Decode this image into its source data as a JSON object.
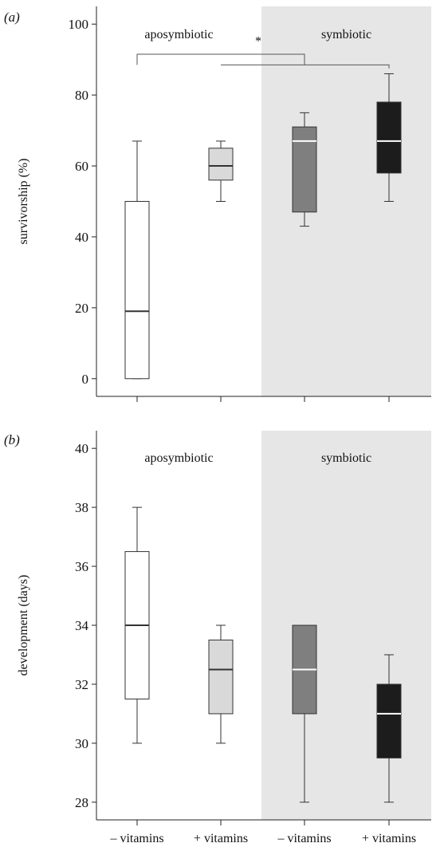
{
  "panels": [
    {
      "label": "(a)",
      "ylabel": "survivorship (%)",
      "group_labels": [
        "aposymbiotic",
        "symbiotic"
      ]
    },
    {
      "label": "(b)",
      "ylabel": "development (days)",
      "group_labels": [
        "aposymbiotic",
        "symbiotic"
      ]
    }
  ],
  "significance_marker": "*",
  "x_tick_labels": [
    "– vitamins",
    "+ vitamins",
    "– vitamins",
    "+ vitamins"
  ],
  "colors": {
    "symbiotic_background": "#e6e6e6",
    "box_fills": [
      "#ffffff",
      "#d9d9d9",
      "#7f7f7f",
      "#1c1c1c"
    ],
    "median_colors": [
      "#333333",
      "#333333",
      "#ffffff",
      "#ffffff"
    ]
  },
  "chart_data": [
    {
      "type": "box",
      "ylabel": "survivorship (%)",
      "ylim": [
        -5,
        105
      ],
      "yticks": [
        0,
        20,
        40,
        60,
        80,
        100
      ],
      "categories": [
        "– vitamins",
        "+ vitamins",
        "– vitamins",
        "+ vitamins"
      ],
      "groups": [
        "aposymbiotic",
        "aposymbiotic",
        "symbiotic",
        "symbiotic"
      ],
      "boxes": [
        {
          "whisker_low": 0,
          "q1": 0,
          "median": 19,
          "q3": 50,
          "whisker_high": 67
        },
        {
          "whisker_low": 50,
          "q1": 56,
          "median": 60,
          "q3": 65,
          "whisker_high": 67
        },
        {
          "whisker_low": 43,
          "q1": 47,
          "median": 67,
          "q3": 71,
          "whisker_high": 75
        },
        {
          "whisker_low": 50,
          "q1": 58,
          "median": 67,
          "q3": 78,
          "whisker_high": 86
        }
      ],
      "annotation": "*"
    },
    {
      "type": "box",
      "ylabel": "development (days)",
      "ylim": [
        27.4,
        40.6
      ],
      "yticks": [
        28,
        30,
        32,
        34,
        36,
        38,
        40
      ],
      "categories": [
        "– vitamins",
        "+ vitamins",
        "– vitamins",
        "+ vitamins"
      ],
      "groups": [
        "aposymbiotic",
        "aposymbiotic",
        "symbiotic",
        "symbiotic"
      ],
      "boxes": [
        {
          "whisker_low": 30,
          "q1": 31.5,
          "median": 34,
          "q3": 36.5,
          "whisker_high": 38
        },
        {
          "whisker_low": 30,
          "q1": 31,
          "median": 32.5,
          "q3": 33.5,
          "whisker_high": 34
        },
        {
          "whisker_low": 28,
          "q1": 31,
          "median": 32.5,
          "q3": 34,
          "whisker_high": 34
        },
        {
          "whisker_low": 28,
          "q1": 29.5,
          "median": 31,
          "q3": 32,
          "whisker_high": 33
        }
      ]
    }
  ]
}
